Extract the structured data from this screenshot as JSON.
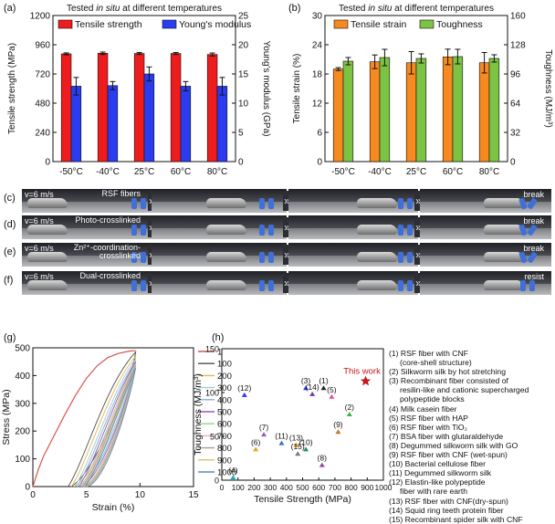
{
  "colors": {
    "tensile_strength": "#ee1c1c",
    "youngs_modulus": "#2a3cf0",
    "tensile_strain": "#f6891f",
    "toughness": "#7cc243",
    "this_work": "#c4161c"
  },
  "chart_data": [
    {
      "id": "a",
      "panel_label": "(a)",
      "type": "bar",
      "title_prefix": "Tested ",
      "title_italic": "in situ",
      "title_suffix": " at different temperatures",
      "categories": [
        "-50°C",
        "-40°C",
        "25°C",
        "60°C",
        "80°C"
      ],
      "ylabel": "Tensile strength (MPa)",
      "ylabel2": "Young's modulus (GPa)",
      "ylim": [
        0,
        1200
      ],
      "ylim2": [
        0,
        25
      ],
      "yticks": [
        0,
        240,
        480,
        720,
        960,
        1200
      ],
      "yticks2": [
        0,
        5,
        10,
        15,
        20,
        25
      ],
      "series": [
        {
          "name": "Tensile strength",
          "axis": "left",
          "values": [
            885,
            890,
            888,
            888,
            880
          ],
          "errors": [
            8,
            10,
            8,
            8,
            12
          ]
        },
        {
          "name": "Young's modulus",
          "axis": "right",
          "values": [
            12.9,
            13.0,
            15.0,
            12.9,
            12.9
          ],
          "errors": [
            1.5,
            0.7,
            1.2,
            0.8,
            1.5
          ]
        }
      ]
    },
    {
      "id": "b",
      "panel_label": "(b)",
      "type": "bar",
      "title_prefix": "Tested ",
      "title_italic": "in situ",
      "title_suffix": " at different temperatures",
      "categories": [
        "-50°C",
        "-40°C",
        "25°C",
        "60°C",
        "80°C"
      ],
      "ylabel": "Tensile strain (%)",
      "ylabel2": "Toughness (MJ/m³)",
      "ylim": [
        0,
        30
      ],
      "ylim2": [
        0,
        160
      ],
      "yticks": [
        0,
        6,
        12,
        18,
        24,
        30
      ],
      "yticks2": [
        0,
        32,
        64,
        96,
        128,
        160
      ],
      "series": [
        {
          "name": "Tensile strain",
          "axis": "left",
          "values": [
            19.0,
            20.5,
            20.3,
            21.5,
            20.3
          ],
          "errors": [
            0.3,
            1.4,
            2.3,
            1.6,
            2.1
          ]
        },
        {
          "name": "Toughness",
          "axis": "right",
          "values": [
            110,
            114,
            113,
            115,
            113
          ],
          "errors": [
            4,
            9,
            5,
            8,
            4
          ]
        }
      ]
    },
    {
      "id": "g",
      "panel_label": "(g)",
      "type": "line",
      "xlabel": "Strain (%)",
      "ylabel": "Stress (MPa)",
      "xlim": [
        0,
        15
      ],
      "ylim": [
        0,
        500
      ],
      "xticks": [
        0,
        5,
        10,
        15
      ],
      "yticks": [
        0,
        100,
        200,
        300,
        400,
        500
      ],
      "legend": [
        "1",
        "100",
        "200",
        "300",
        "400",
        "500",
        "600",
        "700",
        "800",
        "900",
        "1000"
      ],
      "legend_colors": [
        "#d9534f",
        "#4d4d4d",
        "#e4b84f",
        "#a7c7d8",
        "#7fb3d5",
        "#9b59b6",
        "#9fd18b",
        "#f0a8c8",
        "#a0a0a0",
        "#d4c36a",
        "#5b8cc8"
      ],
      "loading_path_x": [
        0,
        0.5,
        1,
        2,
        3,
        4,
        5,
        6,
        7,
        8,
        9,
        9.6
      ],
      "loading_path_y": [
        0,
        60,
        110,
        185,
        260,
        330,
        390,
        435,
        465,
        480,
        488,
        490
      ],
      "cycle_offsets_x": [
        3.3,
        3.6,
        3.9,
        4.1,
        4.3,
        4.5,
        4.6,
        4.7,
        4.8,
        4.9
      ],
      "cycle_peak_y": [
        485,
        470,
        460,
        452,
        448,
        445,
        440,
        436,
        432,
        428
      ]
    },
    {
      "id": "h",
      "panel_label": "(h)",
      "type": "scatter",
      "xlabel": "Tensile Strength (MPa)",
      "ylabel": "Toughness (MJ/m³)",
      "xlim": [
        0,
        1000
      ],
      "ylim": [
        0,
        150
      ],
      "xticks": [
        0,
        100,
        200,
        300,
        400,
        500,
        600,
        700,
        800,
        900,
        1000
      ],
      "yticks": [
        0,
        50,
        100,
        150
      ],
      "points": [
        {
          "label": "(1)",
          "x": 630,
          "y": 105,
          "color": "#222222"
        },
        {
          "label": "(2)",
          "x": 790,
          "y": 75,
          "color": "#3cb04a"
        },
        {
          "label": "(3)",
          "x": 520,
          "y": 105,
          "color": "#2a3cf0"
        },
        {
          "label": "(4)",
          "x": 70,
          "y": 3,
          "color": "#1ab0c8"
        },
        {
          "label": "(5)",
          "x": 680,
          "y": 95,
          "color": "#e0509a"
        },
        {
          "label": "(6)",
          "x": 210,
          "y": 35,
          "color": "#e7a21e"
        },
        {
          "label": "(7)",
          "x": 260,
          "y": 52,
          "color": "#9b59b6"
        },
        {
          "label": "(8)",
          "x": 620,
          "y": 17,
          "color": "#8e44ad"
        },
        {
          "label": "(9)",
          "x": 720,
          "y": 55,
          "color": "#c7762e"
        },
        {
          "label": "(10)",
          "x": 520,
          "y": 35,
          "color": "#1e8f5a"
        },
        {
          "label": "(11)",
          "x": 370,
          "y": 42,
          "color": "#3a6fd8"
        },
        {
          "label": "(12)",
          "x": 140,
          "y": 97,
          "color": "#2a3cf0"
        },
        {
          "label": "(13)",
          "x": 460,
          "y": 40,
          "color": "#e7a21e"
        },
        {
          "label": "(14)",
          "x": 560,
          "y": 98,
          "color": "#6b3fa0"
        },
        {
          "label": "(15)",
          "x": 470,
          "y": 30,
          "color": "#7a7a7a"
        }
      ],
      "this_work": {
        "label": "This work",
        "x": 890,
        "y": 113
      }
    }
  ],
  "references": [
    "(1) RSF fiber with CNF",
    "(core-shell structure)",
    "(2) Silkworm silk by hot stretching",
    "(3) Recombinant fiber consisted of",
    "resilin-like and cationic supercharged",
    "polypeptide blocks",
    "(4) Milk casein fiber",
    "(5) RSF fiber with HAP",
    "(6) RSF fiber with TiO₂",
    "(7) BSA fiber with glutaraldehyde",
    "(8) Degummed silkworm silk with GO",
    "(9) RSF fiber with CNF (wet-spun)",
    "(10) Bacterial cellulose fiber",
    "(11) Degummed silkworm silk",
    "(12) Elastin-like polypeptide",
    "fiber with rare earth",
    "(13) RSF fiber with CNF(dry-spun)",
    "(14) Squid ring teeth protein fiber",
    "(15) Recombinant spider silk with CNF"
  ],
  "filmstrips": [
    {
      "label": "(c)",
      "speed": "v=6 m/s",
      "caption": "RSF fibers",
      "result": "break"
    },
    {
      "label": "(d)",
      "speed": "v=6 m/s",
      "caption": "Photo-crosslinked",
      "result": "break"
    },
    {
      "label": "(e)",
      "speed": "v=6 m/s",
      "caption": "Zn²⁺-coordination-crosslinked",
      "result": "break"
    },
    {
      "label": "(f)",
      "speed": "v=6 m/s",
      "caption": "Dual-crosslinked",
      "result": "resist"
    }
  ]
}
